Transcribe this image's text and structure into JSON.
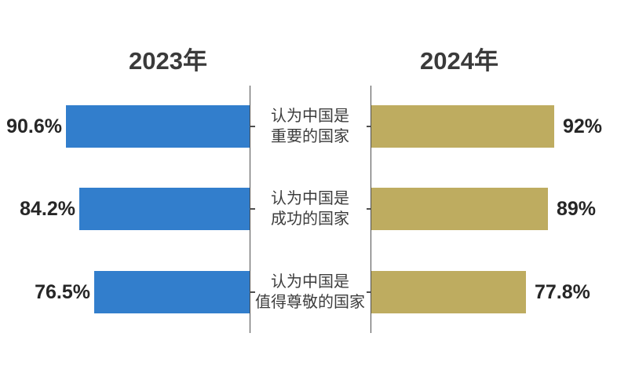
{
  "page": {
    "background": "#ffffff"
  },
  "chart_data": {
    "type": "bar",
    "variant": "diverging-horizontal-comparison",
    "title": "",
    "categories": [
      [
        "认为中国是",
        "重要的国家"
      ],
      [
        "认为中国是",
        "成功的国家"
      ],
      [
        "认为中国是",
        "值得尊敬的国家"
      ]
    ],
    "series": [
      {
        "name": "2023年",
        "side": "left",
        "color": "#327ECC",
        "values": [
          90.6,
          84.2,
          76.5
        ],
        "labels": [
          "90.6%",
          "84.2%",
          "76.5%"
        ]
      },
      {
        "name": "2024年",
        "side": "right",
        "color": "#BEAC60",
        "values": [
          92,
          89,
          77.8
        ],
        "labels": [
          "92%",
          "89%",
          "77.8%"
        ]
      }
    ],
    "value_unit": "%",
    "xlim": [
      0,
      100
    ],
    "grid": false,
    "axis_color": "#4f4f4f",
    "title_color": "#3a3a3a",
    "label_color": "#262626",
    "category_color": "#3d3d3d",
    "legend_position": "column-titles"
  }
}
